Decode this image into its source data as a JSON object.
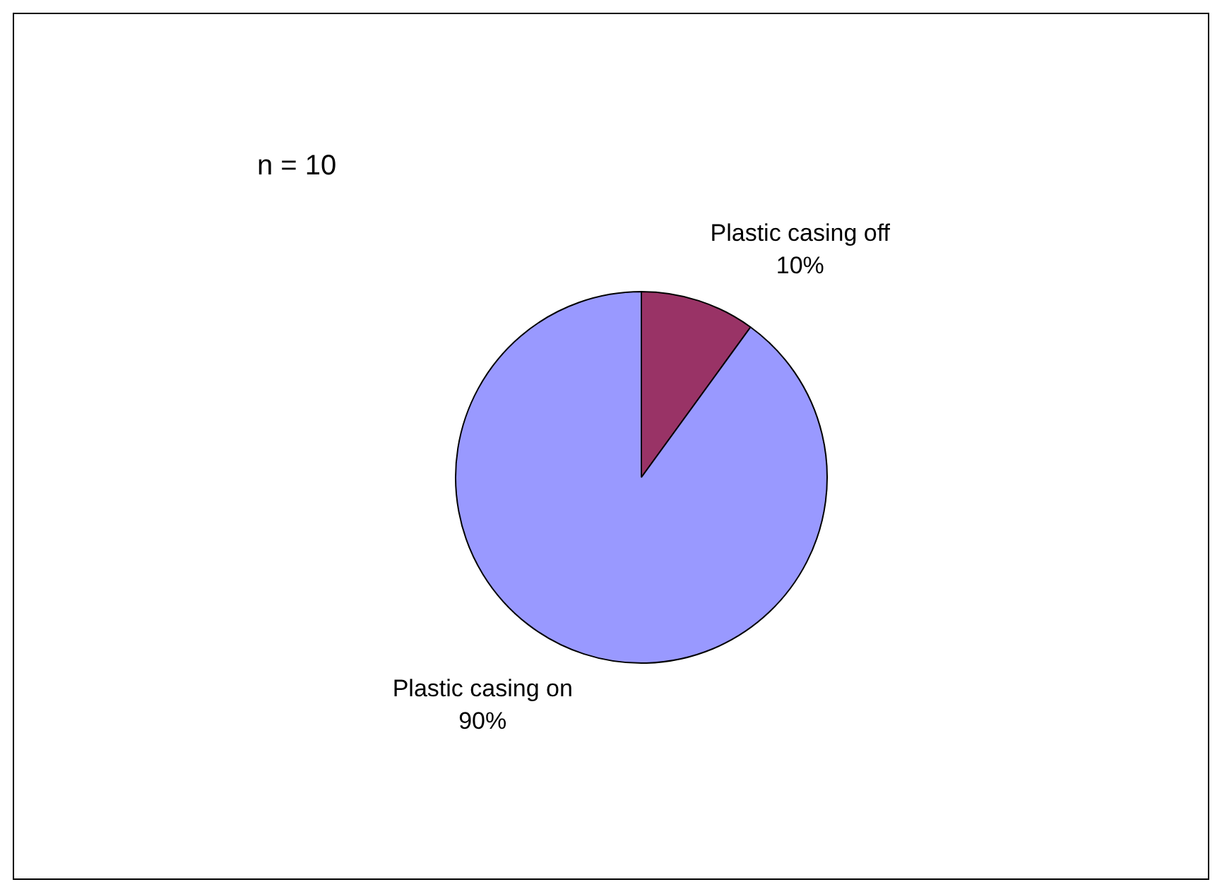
{
  "chart_data": {
    "type": "pie",
    "categories": [
      "Plastic casing off",
      "Plastic casing on"
    ],
    "values": [
      10,
      90
    ],
    "colors": [
      "#993366",
      "#9999ff"
    ],
    "value_labels": [
      "10%",
      "90%"
    ],
    "annotations": [
      "n = 10"
    ]
  }
}
